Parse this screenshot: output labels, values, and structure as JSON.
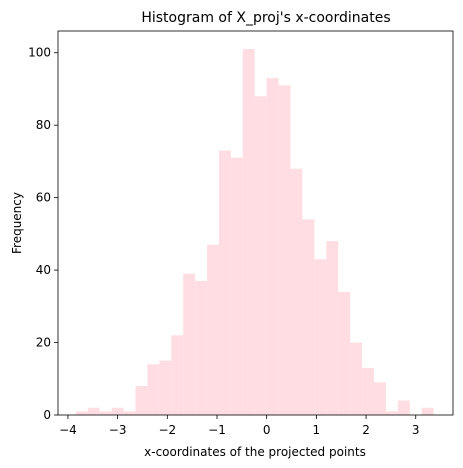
{
  "chart_data": {
    "type": "bar",
    "title": "Histogram of X_proj's x-coordinates",
    "xlabel": "x-coordinates of the projected points",
    "ylabel": "Frequency",
    "xlim": [
      -4.2,
      3.75
    ],
    "ylim": [
      0,
      106
    ],
    "xticks": [
      -4,
      -3,
      -2,
      -1,
      0,
      1,
      2,
      3
    ],
    "yticks": [
      0,
      20,
      40,
      60,
      80,
      100
    ],
    "bar_color": "#ffdde2",
    "bins": {
      "edges": [
        -3.84,
        -3.6,
        -3.36,
        -3.12,
        -2.88,
        -2.64,
        -2.4,
        -2.16,
        -1.92,
        -1.68,
        -1.44,
        -1.2,
        -0.96,
        -0.72,
        -0.48,
        -0.24,
        0.0,
        0.24,
        0.48,
        0.72,
        0.96,
        1.2,
        1.44,
        1.68,
        1.92,
        2.16,
        2.4,
        2.64,
        2.88,
        3.12,
        3.36,
        3.6
      ],
      "counts": [
        1,
        2,
        1,
        2,
        1,
        8,
        14,
        15,
        22,
        39,
        37,
        47,
        73,
        71,
        101,
        88,
        93,
        91,
        68,
        54,
        43,
        48,
        34,
        20,
        13,
        9,
        1,
        4,
        0,
        2,
        0
      ]
    }
  }
}
